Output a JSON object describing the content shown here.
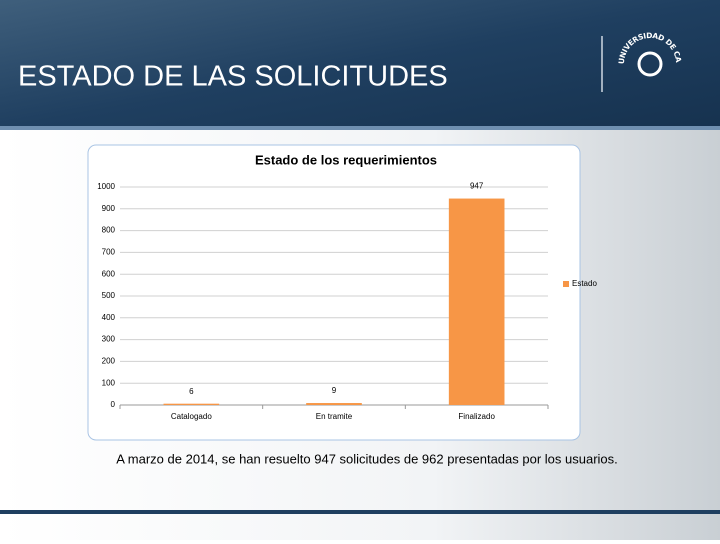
{
  "header": {
    "title": "ESTADO DE LAS SOLICITUDES",
    "logo_text": "UNIVERSIDAD DE CALDAS"
  },
  "chart_data": {
    "type": "bar",
    "title": "Estado de los requerimientos",
    "categories": [
      "Catalogado",
      "En tramite",
      "Finalizado"
    ],
    "series": [
      {
        "name": "Estado",
        "color": "#f79646",
        "values": [
          6,
          9,
          947
        ]
      }
    ],
    "ylim": [
      0,
      1000
    ],
    "yticks": [
      0,
      100,
      200,
      300,
      400,
      500,
      600,
      700,
      800,
      900,
      1000
    ],
    "grid": true,
    "legend": "right"
  },
  "caption": "A marzo de 2014, se han resuelto 947 solicitudes de 962 presentadas por los usuarios."
}
